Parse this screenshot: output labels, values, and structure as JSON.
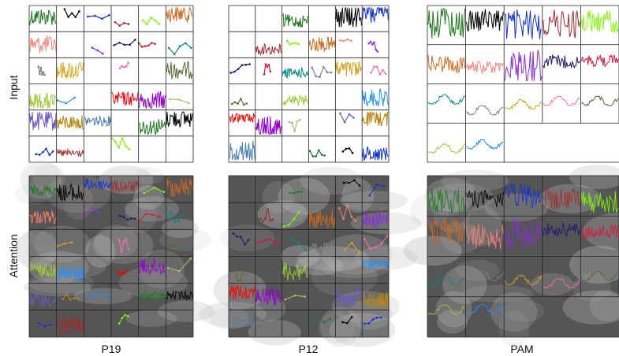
{
  "row_labels": [
    "Input",
    "Attention"
  ],
  "column_labels": [
    "P19",
    "P12",
    "PAM"
  ],
  "panels": [
    {
      "id": "P19",
      "grid_rows": 6,
      "grid_cols": 6
    },
    {
      "id": "P12",
      "grid_rows": 6,
      "grid_cols": 6
    },
    {
      "id": "PAM",
      "grid_rows": 4,
      "grid_cols": 5
    }
  ],
  "palette": [
    "#1f7a1f",
    "#000000",
    "#1030e0",
    "#a52a2a",
    "#7cfc00",
    "#d2691e",
    "#fa8072",
    "#8a2be2",
    "#191970",
    "#dc143c",
    "#008b8b",
    "#808080",
    "#daa520",
    "#ff69b4",
    "#556b2f",
    "#9acd32",
    "#1e90ff",
    "#ff0000",
    "#9400d3",
    "#bdb76b",
    "#6a5acd",
    "#b8860b",
    "#4682b4"
  ]
}
